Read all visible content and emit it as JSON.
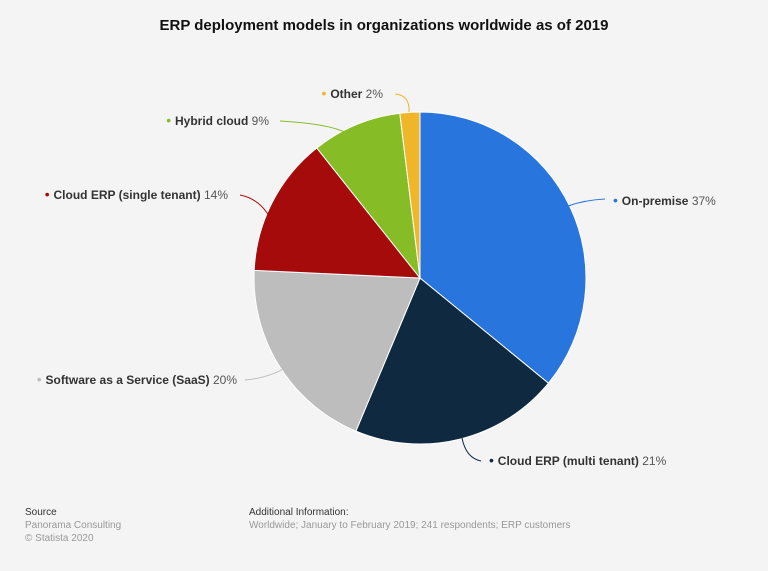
{
  "chart_data": {
    "type": "pie",
    "title": "ERP deployment models in organizations worldwide as of 2019",
    "unit": "%",
    "slices": [
      {
        "label": "On-premise",
        "value": 37,
        "color": "#2876dd"
      },
      {
        "label": "Cloud ERP (multi tenant)",
        "value": 21,
        "color": "#0f2a40"
      },
      {
        "label": "Software as a Service (SaaS)",
        "value": 20,
        "color": "#bdbdbd"
      },
      {
        "label": "Cloud ERP (single tenant)",
        "value": 14,
        "color": "#a50b0b"
      },
      {
        "label": "Hybrid cloud",
        "value": 9,
        "color": "#86bc25"
      },
      {
        "label": "Other",
        "value": 2,
        "color": "#f0b62a"
      }
    ]
  },
  "footer": {
    "source_heading": "Source",
    "source_lines": [
      "Panorama Consulting",
      "© Statista 2020"
    ],
    "info_heading": "Additional Information:",
    "info_text": "Worldwide; January to February 2019; 241 respondents; ERP customers"
  }
}
